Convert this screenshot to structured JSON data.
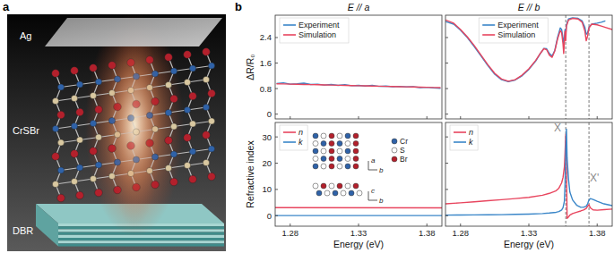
{
  "panel_labels": [
    "a",
    "b"
  ],
  "illustration": {
    "labels": [
      "Ag",
      "CrSBr",
      "DBR"
    ]
  },
  "chart_data": [
    {
      "type": "line",
      "title": "E // a",
      "ylabel": "ΔR/R₀",
      "x": [
        1.27,
        1.275,
        1.28,
        1.285,
        1.29,
        1.295,
        1.3,
        1.305,
        1.31,
        1.315,
        1.32,
        1.325,
        1.33,
        1.335,
        1.34,
        1.345,
        1.35,
        1.355,
        1.36,
        1.365,
        1.37,
        1.375,
        1.38,
        1.385,
        1.39
      ],
      "xlim": [
        1.269,
        1.391
      ],
      "xticks": [
        1.28,
        1.33,
        1.38
      ],
      "ylim": [
        -0.15,
        3.1
      ],
      "yticks": [
        0,
        0.8,
        1.6,
        2.4
      ],
      "legend": "upper left",
      "tick_labels": "y",
      "series": [
        {
          "name": "Experiment",
          "color": "#3a86c8",
          "values": [
            0.96,
            0.98,
            0.94,
            0.95,
            0.97,
            0.93,
            0.94,
            0.91,
            0.93,
            0.9,
            0.92,
            0.89,
            0.9,
            0.88,
            0.9,
            0.87,
            0.88,
            0.86,
            0.87,
            0.85,
            0.86,
            0.83,
            0.84,
            0.82,
            0.81
          ]
        },
        {
          "name": "Simulation",
          "color": "#e8455e",
          "values": [
            0.95,
            0.945,
            0.94,
            0.935,
            0.93,
            0.925,
            0.92,
            0.915,
            0.91,
            0.905,
            0.9,
            0.895,
            0.89,
            0.885,
            0.88,
            0.875,
            0.87,
            0.865,
            0.86,
            0.855,
            0.85,
            0.845,
            0.84,
            0.835,
            0.83
          ]
        }
      ]
    },
    {
      "type": "line",
      "title": "E // b",
      "x": [
        1.269,
        1.275,
        1.28,
        1.285,
        1.29,
        1.295,
        1.3,
        1.305,
        1.31,
        1.315,
        1.32,
        1.325,
        1.33,
        1.335,
        1.338,
        1.341,
        1.343,
        1.345,
        1.347,
        1.349,
        1.351,
        1.353,
        1.354,
        1.355,
        1.3555,
        1.356,
        1.3565,
        1.357,
        1.3575,
        1.359,
        1.362,
        1.366,
        1.369,
        1.371,
        1.372,
        1.373,
        1.374,
        1.376,
        1.38,
        1.383,
        1.386,
        1.391
      ],
      "xlim": [
        1.269,
        1.391
      ],
      "xticks": [
        1.28,
        1.33,
        1.38
      ],
      "ylim": [
        -0.15,
        3.1
      ],
      "yticks": [
        0,
        0.8,
        1.6,
        2.4
      ],
      "legend": "upper center",
      "tick_labels": false,
      "reference_lines": [
        1.357,
        1.374
      ],
      "series": [
        {
          "name": "Experiment",
          "color": "#3a86c8",
          "values": [
            2.9,
            2.82,
            2.63,
            2.4,
            2.12,
            1.82,
            1.52,
            1.25,
            1.08,
            1.02,
            1.07,
            1.2,
            1.4,
            1.66,
            1.87,
            2.06,
            2.05,
            1.9,
            1.82,
            2.0,
            2.4,
            2.7,
            2.65,
            2.38,
            2.2,
            2.4,
            2.65,
            2.5,
            2.8,
            2.98,
            3.02,
            3.0,
            2.92,
            2.72,
            2.5,
            2.55,
            2.72,
            2.82,
            2.85,
            2.88,
            2.92,
            null
          ]
        },
        {
          "name": "Simulation",
          "color": "#e8455e",
          "values": [
            2.95,
            2.85,
            2.65,
            2.42,
            2.15,
            1.85,
            1.55,
            1.28,
            1.1,
            1.03,
            1.08,
            1.22,
            1.42,
            1.68,
            1.88,
            2.05,
            2.02,
            1.85,
            1.78,
            1.98,
            2.35,
            2.62,
            2.55,
            2.2,
            1.9,
            2.25,
            2.6,
            2.3,
            2.75,
            2.95,
            3.0,
            2.98,
            2.88,
            2.6,
            2.3,
            2.45,
            2.7,
            2.82,
            2.8,
            2.76,
            2.72,
            2.65
          ]
        }
      ]
    },
    {
      "type": "line",
      "xlabel": "Energy (eV)",
      "ylabel": "Refractive index",
      "x": [
        1.269,
        1.391
      ],
      "xlim": [
        1.269,
        1.391
      ],
      "xticks": [
        1.28,
        1.33,
        1.38
      ],
      "ylim": [
        -4,
        35.5
      ],
      "yticks": [
        0,
        10,
        20,
        30
      ],
      "legend": "upper left",
      "tick_labels": true,
      "series": [
        {
          "name": "n",
          "color": "#e8455e",
          "values": [
            3.05,
            3.0
          ]
        },
        {
          "name": "k",
          "color": "#3a86c8",
          "values": [
            0.05,
            0.05
          ]
        }
      ],
      "inset": {
        "legend": [
          {
            "label": "Cr",
            "color": "#2f62a8"
          },
          {
            "label": "S",
            "color": "#ffffff"
          },
          {
            "label": "Br",
            "color": "#b3202c"
          }
        ],
        "axes": [
          "a",
          "b",
          "c",
          "b"
        ]
      }
    },
    {
      "type": "line",
      "xlabel": "Energy (eV)",
      "x": [
        1.269,
        1.28,
        1.29,
        1.3,
        1.31,
        1.32,
        1.33,
        1.34,
        1.345,
        1.35,
        1.352,
        1.354,
        1.355,
        1.356,
        1.3565,
        1.357,
        1.3575,
        1.358,
        1.359,
        1.36,
        1.362,
        1.365,
        1.368,
        1.37,
        1.372,
        1.373,
        1.374,
        1.375,
        1.377,
        1.38,
        1.385,
        1.391
      ],
      "xlim": [
        1.269,
        1.391
      ],
      "xticks": [
        1.28,
        1.33,
        1.38
      ],
      "ylim": [
        -4,
        35.5
      ],
      "yticks": [
        0,
        10,
        20,
        30
      ],
      "legend": "upper left",
      "tick_labels": "x",
      "reference_lines": [
        1.357,
        1.374
      ],
      "annotations": [
        {
          "text": "X",
          "x": 1.351,
          "y": 32
        },
        {
          "text": "X'",
          "x": 1.378,
          "y": 13
        }
      ],
      "series": [
        {
          "name": "n",
          "color": "#e8455e",
          "values": [
            4.5,
            4.9,
            5.3,
            5.7,
            6.1,
            6.5,
            7.0,
            7.8,
            8.5,
            9.5,
            10.5,
            12.5,
            14.5,
            18.5,
            24,
            31,
            20,
            -1,
            -0.5,
            0.2,
            0.8,
            1.3,
            1.8,
            2.2,
            2.8,
            3.6,
            4.2,
            3.0,
            2.2,
            2.1,
            2.3,
            2.5
          ]
        },
        {
          "name": "k",
          "color": "#3a86c8",
          "values": [
            0.2,
            0.25,
            0.3,
            0.35,
            0.4,
            0.5,
            0.6,
            0.8,
            1.0,
            1.3,
            1.6,
            2.2,
            3.0,
            5.5,
            12,
            25,
            33,
            22,
            14,
            9,
            6,
            4,
            3.2,
            3.2,
            3.6,
            4.5,
            6,
            6.5,
            6.2,
            5.5,
            4.5,
            3.8
          ]
        }
      ]
    }
  ]
}
